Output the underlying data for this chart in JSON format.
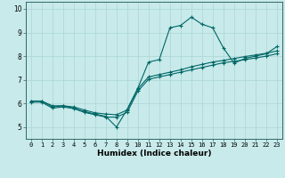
{
  "title": "",
  "xlabel": "Humidex (Indice chaleur)",
  "ylabel": "",
  "background_color": "#c8eaea",
  "grid_color": "#b0d8d8",
  "line_color": "#006666",
  "xlim": [
    -0.5,
    23.5
  ],
  "ylim": [
    4.5,
    10.3
  ],
  "xticks": [
    0,
    1,
    2,
    3,
    4,
    5,
    6,
    7,
    8,
    9,
    10,
    11,
    12,
    13,
    14,
    15,
    16,
    17,
    18,
    19,
    20,
    21,
    22,
    23
  ],
  "yticks": [
    5,
    6,
    7,
    8,
    9,
    10
  ],
  "line1_x": [
    0,
    1,
    2,
    3,
    4,
    5,
    6,
    7,
    8,
    9,
    10,
    11,
    12,
    13,
    14,
    15,
    16,
    17,
    18,
    19,
    20,
    21,
    22,
    23
  ],
  "line1_y": [
    6.1,
    6.1,
    5.85,
    5.9,
    5.8,
    5.65,
    5.55,
    5.45,
    5.0,
    5.75,
    6.65,
    7.75,
    7.85,
    9.2,
    9.3,
    9.65,
    9.35,
    9.2,
    8.35,
    7.7,
    7.9,
    8.0,
    8.1,
    8.4
  ],
  "line2_x": [
    0,
    1,
    2,
    3,
    4,
    5,
    6,
    7,
    8,
    9,
    10,
    11,
    12,
    13,
    14,
    15,
    16,
    17,
    18,
    19,
    20,
    21,
    22,
    23
  ],
  "line2_y": [
    6.05,
    6.05,
    5.8,
    5.85,
    5.78,
    5.62,
    5.52,
    5.42,
    5.42,
    5.62,
    6.52,
    7.02,
    7.12,
    7.22,
    7.32,
    7.42,
    7.52,
    7.62,
    7.72,
    7.78,
    7.85,
    7.92,
    8.0,
    8.1
  ],
  "line3_x": [
    0,
    1,
    2,
    3,
    4,
    5,
    6,
    7,
    8,
    9,
    10,
    11,
    12,
    13,
    14,
    15,
    16,
    17,
    18,
    19,
    20,
    21,
    22,
    23
  ],
  "line3_y": [
    6.1,
    6.1,
    5.9,
    5.9,
    5.85,
    5.72,
    5.6,
    5.55,
    5.52,
    5.72,
    6.62,
    7.12,
    7.22,
    7.32,
    7.42,
    7.55,
    7.65,
    7.75,
    7.82,
    7.9,
    7.98,
    8.05,
    8.12,
    8.22
  ],
  "xlabel_fontsize": 6.5,
  "tick_fontsize": 5.0
}
